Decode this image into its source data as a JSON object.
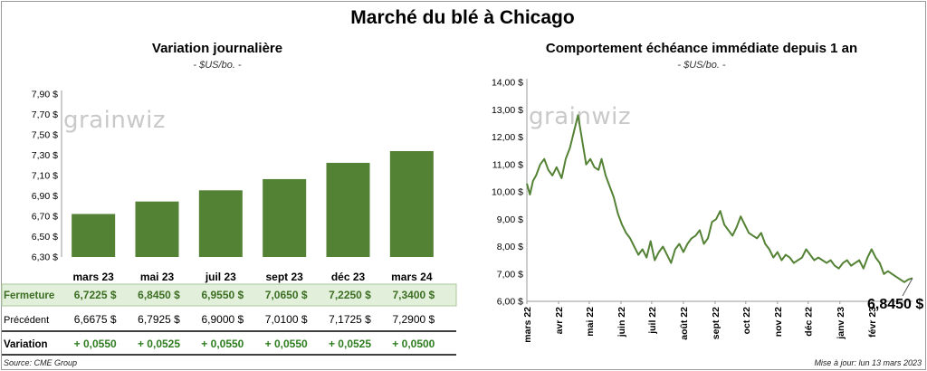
{
  "header": {
    "title": "Marché du blé à Chicago"
  },
  "watermark": "grainwiz",
  "left_panel": {
    "title": "Variation  journalière",
    "subtitle": "- $US/bo. -"
  },
  "right_panel": {
    "title": "Comportement  échéance immédiate depuis 1 an",
    "subtitle": "- $US/bo. -",
    "last_price_label": "6,8450 $"
  },
  "footer": {
    "source": "Source: CME Group",
    "updated": "Mise à jour: lun 13 mars 2023"
  },
  "colors": {
    "bar": "#548235",
    "line": "#548235",
    "highlight_row": "#e2efda",
    "positive": "#2e7d1f"
  },
  "chart_data": [
    {
      "type": "bar",
      "title": "Variation  journalière",
      "subtitle": "- $US/bo. -",
      "categories": [
        "mars 23",
        "mai 23",
        "juil 23",
        "sept 23",
        "déc 23",
        "mars 24"
      ],
      "values": [
        6.7225,
        6.845,
        6.955,
        7.065,
        7.225,
        7.34
      ],
      "ylim": [
        6.3,
        7.9
      ],
      "yticks": [
        "7,90 $",
        "7,70 $",
        "7,50 $",
        "7,30 $",
        "7,10 $",
        "6,90 $",
        "6,70 $",
        "6,50 $",
        "6,30 $"
      ],
      "ytick_values": [
        7.9,
        7.7,
        7.5,
        7.3,
        7.1,
        6.9,
        6.7,
        6.5,
        6.3
      ],
      "grid": false,
      "table": {
        "rows": [
          {
            "label": "Fermeture",
            "values": [
              "6,7225  $",
              "6,8450  $",
              "6,9550  $",
              "7,0650  $",
              "7,2250  $",
              "7,3400  $"
            ],
            "highlight": true
          },
          {
            "label": "Précédent",
            "values": [
              "6,6675  $",
              "6,7925  $",
              "6,9000  $",
              "7,0100  $",
              "7,1725  $",
              "7,2900  $"
            ]
          },
          {
            "label": "Variation",
            "values": [
              "+ 0,0550",
              "+ 0,0525",
              "+ 0,0550",
              "+ 0,0550",
              "+ 0,0525",
              "+ 0,0500"
            ],
            "positive": true
          }
        ]
      }
    },
    {
      "type": "line",
      "title": "Comportement  échéance immédiate depuis 1 an",
      "subtitle": "- $US/bo. -",
      "ylim": [
        6.0,
        14.0
      ],
      "yticks": [
        "14,00 $",
        "13,00 $",
        "12,00 $",
        "11,00 $",
        "10,00 $",
        "9,00 $",
        "8,00 $",
        "7,00 $",
        "6,00 $"
      ],
      "ytick_values": [
        14,
        13,
        12,
        11,
        10,
        9,
        8,
        7,
        6
      ],
      "x_ticks": [
        "mars 22",
        "avr 22",
        "mai 22",
        "juin 22",
        "juil 22",
        "août 22",
        "sept 22",
        "oct 22",
        "nov 22",
        "déc 22",
        "janv 23",
        "févr 23"
      ],
      "x_tick_dates": [
        "2022-03-01",
        "2022-04-01",
        "2022-05-01",
        "2022-06-01",
        "2022-07-01",
        "2022-08-01",
        "2022-09-01",
        "2022-10-01",
        "2022-11-01",
        "2022-12-01",
        "2023-01-01",
        "2023-02-01"
      ],
      "x_range": [
        "2022-03-01",
        "2023-03-13"
      ],
      "grid": false,
      "series": [
        {
          "x": [
            "2022-03-01",
            "2022-03-04",
            "2022-03-07",
            "2022-03-10",
            "2022-03-14",
            "2022-03-18",
            "2022-03-22",
            "2022-03-26",
            "2022-03-30",
            "2022-04-04",
            "2022-04-08",
            "2022-04-12",
            "2022-04-16",
            "2022-04-20",
            "2022-04-24",
            "2022-04-28",
            "2022-05-02",
            "2022-05-06",
            "2022-05-10",
            "2022-05-13",
            "2022-05-17",
            "2022-05-21",
            "2022-05-25",
            "2022-05-29",
            "2022-06-02",
            "2022-06-06",
            "2022-06-10",
            "2022-06-14",
            "2022-06-18",
            "2022-06-22",
            "2022-06-26",
            "2022-06-30",
            "2022-07-04",
            "2022-07-08",
            "2022-07-12",
            "2022-07-16",
            "2022-07-20",
            "2022-07-24",
            "2022-07-28",
            "2022-08-01",
            "2022-08-05",
            "2022-08-09",
            "2022-08-13",
            "2022-08-17",
            "2022-08-21",
            "2022-08-25",
            "2022-08-29",
            "2022-09-02",
            "2022-09-06",
            "2022-09-10",
            "2022-09-14",
            "2022-09-18",
            "2022-09-22",
            "2022-09-26",
            "2022-09-30",
            "2022-10-04",
            "2022-10-08",
            "2022-10-12",
            "2022-10-16",
            "2022-10-20",
            "2022-10-24",
            "2022-10-28",
            "2022-11-01",
            "2022-11-05",
            "2022-11-09",
            "2022-11-13",
            "2022-11-17",
            "2022-11-21",
            "2022-11-25",
            "2022-11-29",
            "2022-12-03",
            "2022-12-07",
            "2022-12-11",
            "2022-12-15",
            "2022-12-19",
            "2022-12-23",
            "2022-12-27",
            "2022-12-31",
            "2023-01-04",
            "2023-01-08",
            "2023-01-12",
            "2023-01-16",
            "2023-01-20",
            "2023-01-24",
            "2023-01-28",
            "2023-02-01",
            "2023-02-05",
            "2023-02-09",
            "2023-02-13",
            "2023-02-17",
            "2023-02-21",
            "2023-02-25",
            "2023-03-01",
            "2023-03-05",
            "2023-03-09",
            "2023-03-13"
          ],
          "y": [
            10.3,
            9.9,
            10.4,
            10.6,
            11.0,
            11.2,
            10.8,
            10.6,
            10.9,
            10.5,
            11.2,
            11.6,
            12.2,
            12.8,
            11.9,
            11.0,
            11.2,
            10.9,
            10.8,
            11.2,
            10.6,
            10.2,
            9.8,
            9.2,
            8.8,
            8.5,
            8.3,
            8.0,
            7.7,
            7.9,
            7.6,
            8.2,
            7.5,
            7.8,
            8.0,
            7.7,
            7.4,
            7.9,
            8.1,
            7.8,
            8.1,
            8.3,
            8.4,
            8.6,
            8.1,
            8.3,
            8.9,
            9.0,
            9.3,
            8.8,
            8.6,
            8.4,
            8.7,
            9.1,
            8.8,
            8.5,
            8.4,
            8.3,
            8.5,
            8.1,
            7.9,
            7.6,
            7.8,
            7.5,
            7.7,
            7.6,
            7.4,
            7.5,
            7.6,
            7.9,
            7.7,
            7.5,
            7.6,
            7.5,
            7.4,
            7.5,
            7.3,
            7.2,
            7.4,
            7.5,
            7.3,
            7.4,
            7.5,
            7.2,
            7.6,
            7.9,
            7.6,
            7.4,
            7.0,
            7.1,
            7.0,
            6.9,
            6.8,
            6.7,
            6.8,
            6.845
          ]
        }
      ]
    }
  ]
}
